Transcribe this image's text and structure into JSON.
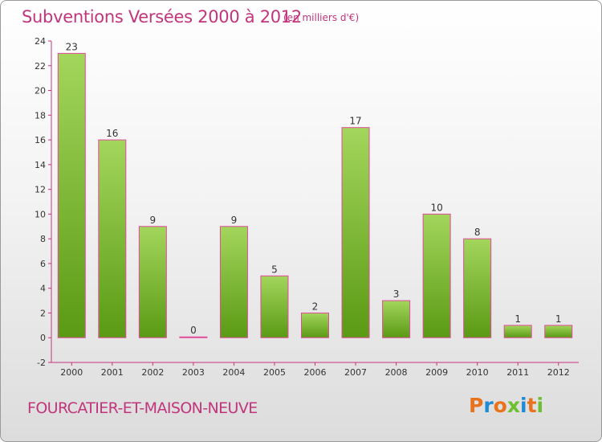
{
  "header": {
    "title": "Subventions Versées 2000 à 2012",
    "unit_note": "(en milliers d'€)"
  },
  "footer": {
    "commune": "FOURCATIER-ET-MAISON-NEUVE",
    "logo_letters": [
      "P",
      "r",
      "o",
      "x",
      "i",
      "t",
      "i"
    ],
    "logo_colors": [
      "#e8731c",
      "#1f8bd6",
      "#e8731c",
      "#6cbf2e",
      "#1f8bd6",
      "#e8731c",
      "#6cbf2e"
    ]
  },
  "chart_data": {
    "type": "bar",
    "categories": [
      "2000",
      "2001",
      "2002",
      "2003",
      "2004",
      "2005",
      "2006",
      "2007",
      "2008",
      "2009",
      "2010",
      "2011",
      "2012"
    ],
    "values": [
      23,
      16,
      9,
      0,
      9,
      5,
      2,
      17,
      3,
      10,
      8,
      1,
      1
    ],
    "data_labels": [
      "23",
      "16",
      "9",
      "0",
      "9",
      "5",
      "2",
      "17",
      "3",
      "10",
      "8",
      "1",
      "1"
    ],
    "ylim": [
      -2,
      24
    ],
    "yticks": [
      "-2",
      "0",
      "2",
      "4",
      "6",
      "8",
      "10",
      "12",
      "14",
      "16",
      "18",
      "20",
      "22",
      "24"
    ],
    "grid": false,
    "bar_color_light": "#a3d65c",
    "bar_color_dark": "#5a9a14",
    "bar_outline": "#e24a9a",
    "axis_color": "#c8357d"
  }
}
